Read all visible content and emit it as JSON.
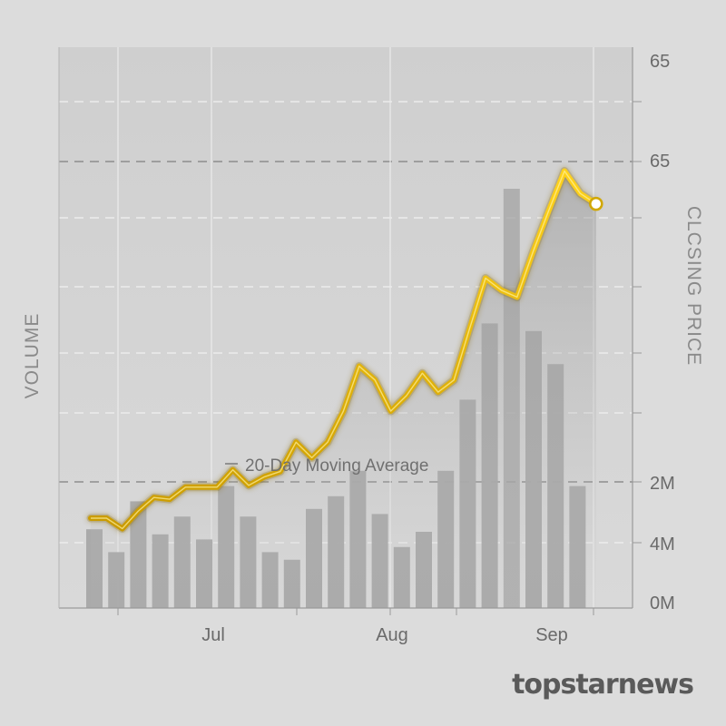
{
  "chart_data": {
    "type": "line",
    "title": "",
    "x_ticks": [
      "Jul",
      "Aug",
      "Sep"
    ],
    "ylabel_left": "VOLUME",
    "ylabel_right": "CLCSING PRICE",
    "price_tick_labels": [
      "65",
      "65"
    ],
    "volume_tick_labels": [
      "2M",
      "4M",
      "0M"
    ],
    "legend_label": "20-Day Moving Average",
    "series": [
      {
        "type": "line",
        "color": "#e3b600",
        "values": [
          30.2,
          30.2,
          29.6,
          30.6,
          31.4,
          31.3,
          32.0,
          32.0,
          32.0,
          33.0,
          32.1,
          32.6,
          32.9,
          34.6,
          33.7,
          34.6,
          36.4,
          39.0,
          38.2,
          36.4,
          37.3,
          38.6,
          37.5,
          38.2,
          41.2,
          44.1,
          43.4,
          43.0,
          45.6,
          48.0,
          50.3,
          49.0,
          48.4
        ]
      },
      {
        "type": "bar",
        "color": "#a8a8a8",
        "values": [
          1.55,
          1.1,
          2.1,
          1.45,
          1.8,
          1.35,
          2.4,
          1.8,
          1.1,
          0.95,
          1.95,
          2.2,
          2.7,
          1.85,
          1.2,
          1.5,
          2.7,
          4.1,
          5.6,
          8.25,
          5.45,
          4.8,
          2.4
        ]
      }
    ],
    "y_price_range": [
      25,
      56
    ],
    "y_volume_range": [
      0,
      10
    ],
    "grid": true
  },
  "brand": {
    "name": "topstarnews"
  }
}
